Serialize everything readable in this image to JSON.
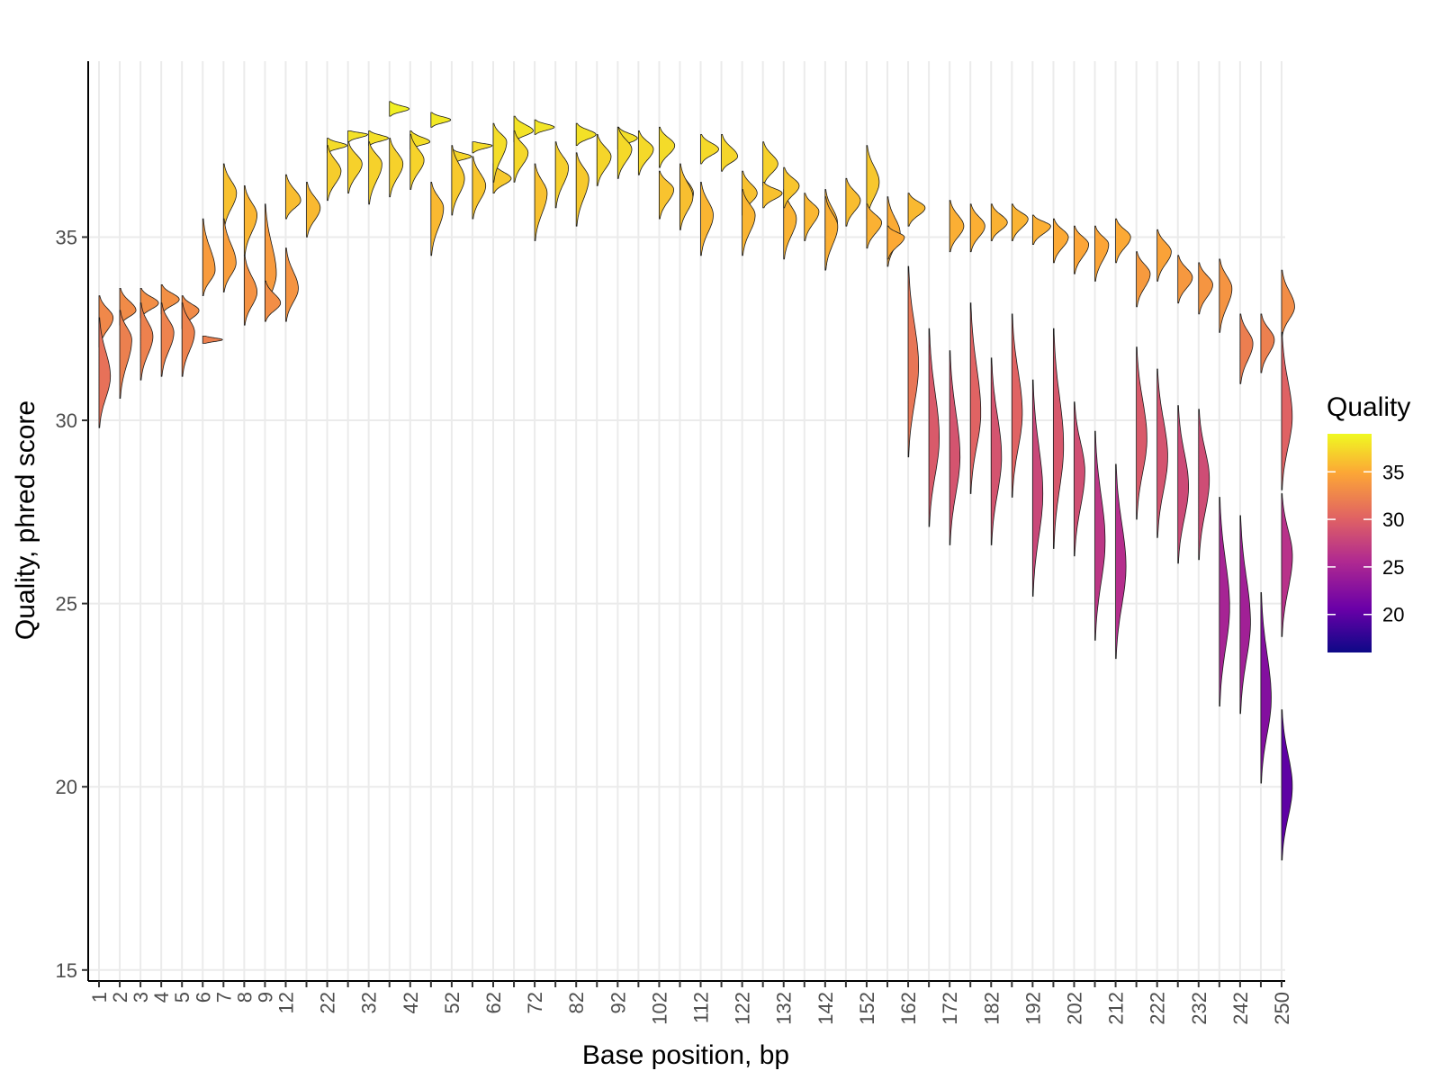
{
  "chart_data": {
    "type": "violin",
    "xlabel": "Base position, bp",
    "ylabel": "Quality, phred score",
    "ylim": [
      14.7,
      39.8
    ],
    "yticks": [
      15,
      20,
      25,
      30,
      35
    ],
    "grid": true,
    "legend": {
      "title": "Quality",
      "position": "right",
      "ticks": [
        20,
        25,
        30,
        35
      ],
      "range": [
        16,
        39
      ]
    },
    "colors": {
      "low": "#0d0887",
      "mid1": "#6a00a8",
      "mid2": "#b12a90",
      "mid3": "#e16462",
      "mid4": "#fca636",
      "high": "#f0f921"
    },
    "x_tick_labels": [
      "1",
      "2",
      "3",
      "4",
      "5",
      "6",
      "7",
      "8",
      "9",
      "12",
      "22",
      "32",
      "42",
      "52",
      "62",
      "72",
      "82",
      "92",
      "102",
      "112",
      "122",
      "132",
      "142",
      "152",
      "162",
      "172",
      "182",
      "192",
      "202",
      "212",
      "222",
      "232",
      "242",
      "250"
    ],
    "positions": [
      {
        "x": "1",
        "groups": [
          {
            "q": [
              32.0,
              33.4
            ],
            "m": 32.8
          },
          {
            "q": [
              29.8,
              32.8
            ],
            "m": 31.2
          }
        ]
      },
      {
        "x": "2",
        "groups": [
          {
            "q": [
              32.6,
              33.6
            ],
            "m": 33.0
          },
          {
            "q": [
              30.6,
              33.0
            ],
            "m": 32.2
          }
        ]
      },
      {
        "x": "3",
        "groups": [
          {
            "q": [
              32.8,
              33.6
            ],
            "m": 33.2
          },
          {
            "q": [
              31.1,
              33.2
            ],
            "m": 32.3
          }
        ]
      },
      {
        "x": "4",
        "groups": [
          {
            "q": [
              32.9,
              33.7
            ],
            "m": 33.3
          },
          {
            "q": [
              31.2,
              33.2
            ],
            "m": 32.4
          }
        ]
      },
      {
        "x": "5",
        "groups": [
          {
            "q": [
              32.5,
              33.4
            ],
            "m": 33.0
          },
          {
            "q": [
              31.2,
              33.2
            ],
            "m": 32.4
          }
        ]
      },
      {
        "x": "6",
        "groups": [
          {
            "q": [
              33.4,
              35.5
            ],
            "m": 34.1
          },
          {
            "q": [
              32.1,
              32.3
            ],
            "m": 32.2
          }
        ]
      },
      {
        "x": "7",
        "groups": [
          {
            "q": [
              35.2,
              37.0
            ],
            "m": 36.2
          },
          {
            "q": [
              33.5,
              35.5
            ],
            "m": 34.3
          }
        ]
      },
      {
        "x": "8",
        "groups": [
          {
            "q": [
              34.5,
              36.4
            ],
            "m": 35.6
          },
          {
            "q": [
              32.6,
              34.5
            ],
            "m": 33.5
          }
        ]
      },
      {
        "x": "9",
        "groups": [
          {
            "q": [
              32.8,
              35.9
            ],
            "m": 34.0
          },
          {
            "q": [
              32.7,
              33.8
            ],
            "m": 33.2
          }
        ]
      },
      {
        "x": "12",
        "groups": [
          {
            "q": [
              35.5,
              36.7
            ],
            "m": 36.0
          },
          {
            "q": [
              32.7,
              34.7
            ],
            "m": 33.6
          }
        ]
      },
      {
        "x": "13",
        "groups": [
          {
            "q": [
              35.0,
              36.5
            ],
            "m": 35.8
          }
        ]
      },
      {
        "x": "22",
        "groups": [
          {
            "q": [
              37.3,
              37.7
            ],
            "m": 37.5
          },
          {
            "q": [
              36.0,
              37.5
            ],
            "m": 36.8
          }
        ]
      },
      {
        "x": "23",
        "groups": [
          {
            "q": [
              37.6,
              37.9
            ],
            "m": 37.8
          },
          {
            "q": [
              36.2,
              37.6
            ],
            "m": 37.0
          }
        ]
      },
      {
        "x": "32",
        "groups": [
          {
            "q": [
              37.5,
              37.9
            ],
            "m": 37.7
          },
          {
            "q": [
              35.9,
              37.6
            ],
            "m": 37.0
          }
        ]
      },
      {
        "x": "33",
        "groups": [
          {
            "q": [
              38.3,
              38.7
            ],
            "m": 38.5
          },
          {
            "q": [
              36.1,
              37.7
            ],
            "m": 37.0
          }
        ]
      },
      {
        "x": "42",
        "groups": [
          {
            "q": [
              37.4,
              37.9
            ],
            "m": 37.6
          },
          {
            "q": [
              36.3,
              37.8
            ],
            "m": 37.1
          }
        ]
      },
      {
        "x": "43",
        "groups": [
          {
            "q": [
              38.0,
              38.4
            ],
            "m": 38.2
          },
          {
            "q": [
              34.5,
              36.5
            ],
            "m": 35.8
          }
        ]
      },
      {
        "x": "52",
        "groups": [
          {
            "q": [
              37.0,
              37.4
            ],
            "m": 37.2
          },
          {
            "q": [
              35.6,
              37.5
            ],
            "m": 36.6
          }
        ]
      },
      {
        "x": "53",
        "groups": [
          {
            "q": [
              37.3,
              37.6
            ],
            "m": 37.5
          },
          {
            "q": [
              35.5,
              37.2
            ],
            "m": 36.4
          }
        ]
      },
      {
        "x": "62",
        "groups": [
          {
            "q": [
              36.2,
              37.0
            ],
            "m": 36.6
          },
          {
            "q": [
              36.5,
              38.1
            ],
            "m": 37.6
          }
        ]
      },
      {
        "x": "63",
        "groups": [
          {
            "q": [
              37.6,
              38.3
            ],
            "m": 37.9
          },
          {
            "q": [
              36.5,
              37.9
            ],
            "m": 37.3
          }
        ]
      },
      {
        "x": "72",
        "groups": [
          {
            "q": [
              37.8,
              38.2
            ],
            "m": 38.0
          },
          {
            "q": [
              34.9,
              37.0
            ],
            "m": 36.2
          }
        ]
      },
      {
        "x": "73",
        "groups": [
          {
            "q": [
              35.8,
              37.6
            ],
            "m": 36.9
          }
        ]
      },
      {
        "x": "82",
        "groups": [
          {
            "q": [
              37.5,
              38.1
            ],
            "m": 37.8
          },
          {
            "q": [
              35.3,
              37.3
            ],
            "m": 36.6
          }
        ]
      },
      {
        "x": "83",
        "groups": [
          {
            "q": [
              36.4,
              37.8
            ],
            "m": 37.2
          }
        ]
      },
      {
        "x": "92",
        "groups": [
          {
            "q": [
              37.4,
              38.0
            ],
            "m": 37.7
          },
          {
            "q": [
              36.6,
              38.0
            ],
            "m": 37.4
          }
        ]
      },
      {
        "x": "93",
        "groups": [
          {
            "q": [
              36.7,
              37.9
            ],
            "m": 37.4
          }
        ]
      },
      {
        "x": "102",
        "groups": [
          {
            "q": [
              36.9,
              38.0
            ],
            "m": 37.5
          },
          {
            "q": [
              35.5,
              36.8
            ],
            "m": 36.3
          }
        ]
      },
      {
        "x": "103",
        "groups": [
          {
            "q": [
              35.3,
              36.9
            ],
            "m": 36.2
          },
          {
            "q": [
              35.2,
              37.0
            ],
            "m": 36.1
          }
        ]
      },
      {
        "x": "112",
        "groups": [
          {
            "q": [
              37.0,
              37.8
            ],
            "m": 37.4
          },
          {
            "q": [
              34.5,
              36.5
            ],
            "m": 35.6
          }
        ]
      },
      {
        "x": "113",
        "groups": [
          {
            "q": [
              36.8,
              37.8
            ],
            "m": 37.2
          }
        ]
      },
      {
        "x": "122",
        "groups": [
          {
            "q": [
              35.6,
              36.8
            ],
            "m": 36.2
          },
          {
            "q": [
              34.5,
              36.3
            ],
            "m": 35.6
          }
        ]
      },
      {
        "x": "123",
        "groups": [
          {
            "q": [
              36.4,
              37.6
            ],
            "m": 37.0
          },
          {
            "q": [
              35.8,
              36.5
            ],
            "m": 36.2
          }
        ]
      },
      {
        "x": "132",
        "groups": [
          {
            "q": [
              34.4,
              36.3
            ],
            "m": 35.5
          },
          {
            "q": [
              35.8,
              36.9
            ],
            "m": 36.4
          }
        ]
      },
      {
        "x": "133",
        "groups": [
          {
            "q": [
              34.9,
              36.2
            ],
            "m": 35.7
          }
        ]
      },
      {
        "x": "142",
        "groups": [
          {
            "q": [
              34.1,
              36.3
            ],
            "m": 35.4
          },
          {
            "q": [
              34.1,
              36.1
            ],
            "m": 35.3
          }
        ]
      },
      {
        "x": "143",
        "groups": [
          {
            "q": [
              35.3,
              36.6
            ],
            "m": 36.0
          }
        ]
      },
      {
        "x": "152",
        "groups": [
          {
            "q": [
              35.5,
              37.5
            ],
            "m": 36.5
          },
          {
            "q": [
              34.7,
              35.9
            ],
            "m": 35.4
          }
        ]
      },
      {
        "x": "153",
        "groups": [
          {
            "q": [
              34.2,
              36.1
            ],
            "m": 35.1
          },
          {
            "q": [
              34.4,
              35.3
            ],
            "m": 35.0
          }
        ]
      },
      {
        "x": "162",
        "groups": [
          {
            "q": [
              35.3,
              36.2
            ],
            "m": 35.8
          },
          {
            "q": [
              29.0,
              34.2
            ],
            "m": 31.5
          }
        ]
      },
      {
        "x": "163",
        "groups": [
          {
            "q": [
              27.1,
              32.5
            ],
            "m": 29.5
          }
        ]
      },
      {
        "x": "172",
        "groups": [
          {
            "q": [
              34.6,
              36.0
            ],
            "m": 35.3
          },
          {
            "q": [
              26.6,
              31.9
            ],
            "m": 29.0
          }
        ]
      },
      {
        "x": "173",
        "groups": [
          {
            "q": [
              34.6,
              35.9
            ],
            "m": 35.3
          },
          {
            "q": [
              28.0,
              33.2
            ],
            "m": 30.2
          }
        ]
      },
      {
        "x": "182",
        "groups": [
          {
            "q": [
              34.9,
              35.9
            ],
            "m": 35.4
          },
          {
            "q": [
              26.6,
              31.7
            ],
            "m": 29.0
          }
        ]
      },
      {
        "x": "183",
        "groups": [
          {
            "q": [
              34.9,
              35.9
            ],
            "m": 35.5
          },
          {
            "q": [
              27.9,
              32.9
            ],
            "m": 30.2
          }
        ]
      },
      {
        "x": "192",
        "groups": [
          {
            "q": [
              34.8,
              35.6
            ],
            "m": 35.3
          },
          {
            "q": [
              25.2,
              31.1
            ],
            "m": 28.0
          }
        ]
      },
      {
        "x": "193",
        "groups": [
          {
            "q": [
              34.3,
              35.5
            ],
            "m": 35.0
          },
          {
            "q": [
              26.5,
              32.5
            ],
            "m": 29.3
          }
        ]
      },
      {
        "x": "202",
        "groups": [
          {
            "q": [
              34.0,
              35.3
            ],
            "m": 34.8
          },
          {
            "q": [
              26.3,
              30.5
            ],
            "m": 28.6
          }
        ]
      },
      {
        "x": "203",
        "groups": [
          {
            "q": [
              33.8,
              35.3
            ],
            "m": 34.8
          },
          {
            "q": [
              24.0,
              29.7
            ],
            "m": 26.7
          }
        ]
      },
      {
        "x": "212",
        "groups": [
          {
            "q": [
              34.3,
              35.5
            ],
            "m": 35.0
          },
          {
            "q": [
              23.5,
              28.8
            ],
            "m": 26.0
          }
        ]
      },
      {
        "x": "213",
        "groups": [
          {
            "q": [
              33.1,
              34.6
            ],
            "m": 34.0
          },
          {
            "q": [
              27.3,
              32.0
            ],
            "m": 29.5
          }
        ]
      },
      {
        "x": "222",
        "groups": [
          {
            "q": [
              33.8,
              35.2
            ],
            "m": 34.6
          },
          {
            "q": [
              26.8,
              31.4
            ],
            "m": 29.0
          }
        ]
      },
      {
        "x": "223",
        "groups": [
          {
            "q": [
              33.2,
              34.5
            ],
            "m": 33.9
          },
          {
            "q": [
              26.1,
              30.4
            ],
            "m": 28.2
          }
        ]
      },
      {
        "x": "232",
        "groups": [
          {
            "q": [
              32.9,
              34.3
            ],
            "m": 33.7
          },
          {
            "q": [
              26.2,
              30.3
            ],
            "m": 28.4
          }
        ]
      },
      {
        "x": "233",
        "groups": [
          {
            "q": [
              32.4,
              34.4
            ],
            "m": 33.6
          },
          {
            "q": [
              22.2,
              27.9
            ],
            "m": 24.9
          }
        ]
      },
      {
        "x": "242",
        "groups": [
          {
            "q": [
              31.0,
              32.9
            ],
            "m": 32.1
          },
          {
            "q": [
              22.0,
              27.4
            ],
            "m": 24.5
          }
        ]
      },
      {
        "x": "243",
        "groups": [
          {
            "q": [
              31.3,
              32.9
            ],
            "m": 32.2
          },
          {
            "q": [
              20.1,
              25.3
            ],
            "m": 22.4
          }
        ]
      },
      {
        "x": "250",
        "groups": [
          {
            "q": [
              32.3,
              34.1
            ],
            "m": 33.1
          },
          {
            "q": [
              24.1,
              28.0
            ],
            "m": 26.3
          },
          {
            "q": [
              28.1,
              32.4
            ],
            "m": 30.1
          },
          {
            "q": [
              18.0,
              22.1
            ],
            "m": 20.0
          }
        ]
      }
    ]
  }
}
